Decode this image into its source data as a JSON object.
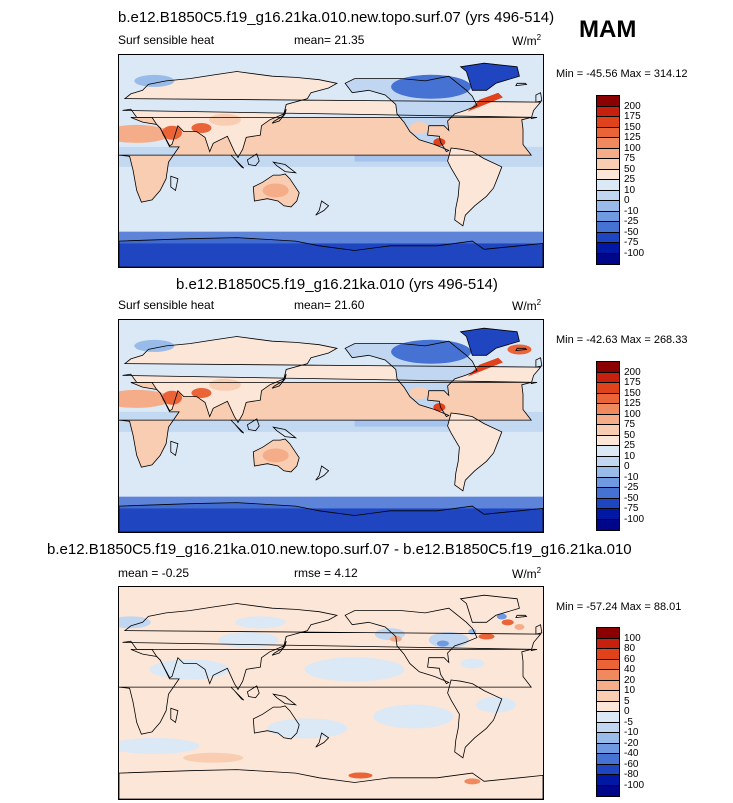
{
  "season": "MAM",
  "panels": [
    {
      "title": "b.e12.B1850C5.f19_g16.21ka.010.new.topo.surf.07 (yrs 496-514)",
      "variable": "Surf sensible heat",
      "mean_label": "mean=  21.35",
      "units": "W/m",
      "units_exp": "2",
      "minmax": "Min = -45.56 Max = 314.12"
    },
    {
      "title": "b.e12.B1850C5.f19_g16.21ka.010 (yrs 496-514)",
      "variable": "Surf sensible heat",
      "mean_label": "mean=  21.60",
      "units": "W/m",
      "units_exp": "2",
      "minmax": "Min = -42.63 Max = 268.33"
    },
    {
      "title": "b.e12.B1850C5.f19_g16.21ka.010.new.topo.surf.07 - b.e12.B1850C5.f19_g16.21ka.010",
      "variable": "mean =  -0.25",
      "mean_label": "rmse =  4.12",
      "units": "W/m",
      "units_exp": "2",
      "minmax": "Min = -57.24 Max = 88.01"
    }
  ],
  "chart_data": [
    {
      "type": "heatmap",
      "title": "b.e12.B1850C5.f19_g16.21ka.010.new.topo.surf.07 (yrs 496-514)",
      "variable": "Surf sensible heat",
      "units": "W/m^2",
      "mean": 21.35,
      "min": -45.56,
      "max": 314.12,
      "colorbar_levels": [
        "200",
        "175",
        "150",
        "125",
        "100",
        "75",
        "50",
        "25",
        "10",
        "0",
        "-10",
        "-25",
        "-50",
        "-75",
        "-100"
      ],
      "colorbar_colors": [
        "#8b0000",
        "#c8200e",
        "#e0421c",
        "#ea6438",
        "#f08a5e",
        "#f5ad89",
        "#f9cdb1",
        "#fce6d8",
        "#dbe8f6",
        "#c0d6f1",
        "#98bbea",
        "#6f99e0",
        "#4672d4",
        "#1f45c0",
        "#0018a4",
        "#00068a"
      ]
    },
    {
      "type": "heatmap",
      "title": "b.e12.B1850C5.f19_g16.21ka.010 (yrs 496-514)",
      "variable": "Surf sensible heat",
      "units": "W/m^2",
      "mean": 21.6,
      "min": -42.63,
      "max": 268.33,
      "colorbar_levels": [
        "200",
        "175",
        "150",
        "125",
        "100",
        "75",
        "50",
        "25",
        "10",
        "0",
        "-10",
        "-25",
        "-50",
        "-75",
        "-100"
      ],
      "colorbar_colors": [
        "#8b0000",
        "#c8200e",
        "#e0421c",
        "#ea6438",
        "#f08a5e",
        "#f5ad89",
        "#f9cdb1",
        "#fce6d8",
        "#dbe8f6",
        "#c0d6f1",
        "#98bbea",
        "#6f99e0",
        "#4672d4",
        "#1f45c0",
        "#0018a4",
        "#00068a"
      ]
    },
    {
      "type": "heatmap",
      "title": "b.e12.B1850C5.f19_g16.21ka.010.new.topo.surf.07 - b.e12.B1850C5.f19_g16.21ka.010",
      "units": "W/m^2",
      "mean": -0.25,
      "rmse": 4.12,
      "min": -57.24,
      "max": 88.01,
      "colorbar_levels": [
        "100",
        "80",
        "60",
        "40",
        "20",
        "10",
        "5",
        "0",
        "-5",
        "-10",
        "-20",
        "-40",
        "-60",
        "-80",
        "-100"
      ],
      "colorbar_colors": [
        "#8b0000",
        "#c8200e",
        "#e0421c",
        "#ea6438",
        "#f08a5e",
        "#f5ad89",
        "#f9cdb1",
        "#fce6d8",
        "#dbe8f6",
        "#c0d6f1",
        "#98bbea",
        "#6f99e0",
        "#4672d4",
        "#1f45c0",
        "#0018a4",
        "#00068a"
      ]
    }
  ]
}
